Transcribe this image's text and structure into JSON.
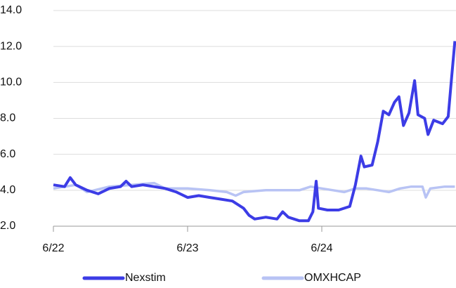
{
  "chart_data": {
    "type": "line",
    "xlim": [
      0,
      36
    ],
    "xticks": [
      {
        "value": 0,
        "label": "6/22"
      },
      {
        "value": 12,
        "label": "6/23"
      },
      {
        "value": 24,
        "label": "6/24"
      }
    ],
    "ylim": [
      2,
      14
    ],
    "yticks": [
      {
        "value": 2,
        "label": "2.0"
      },
      {
        "value": 4,
        "label": "4.0"
      },
      {
        "value": 6,
        "label": "6.0"
      },
      {
        "value": 8,
        "label": "8.0"
      },
      {
        "value": 10,
        "label": "10.0"
      },
      {
        "value": 12,
        "label": "12.0"
      },
      {
        "value": 14,
        "label": "14.0"
      }
    ],
    "grid": true,
    "legend": "bottom",
    "series": [
      {
        "name": "Nexstim",
        "color": "#3c3ce6",
        "x": [
          0,
          1,
          1.5,
          2,
          3,
          4,
          5,
          6,
          6.5,
          7,
          8,
          9,
          10,
          11,
          12,
          13,
          14,
          15,
          16,
          17,
          17.5,
          18,
          19,
          20,
          20.5,
          21,
          22,
          22.8,
          23.2,
          23.5,
          23.7,
          24.5,
          25.5,
          26.5,
          27,
          27.5,
          27.8,
          28.5,
          29,
          29.5,
          30,
          30.5,
          30.9,
          31.3,
          31.8,
          32.3,
          32.6,
          33.2,
          33.5,
          34,
          34.8,
          35.3,
          35.6,
          35.9
        ],
        "values": [
          4.3,
          4.2,
          4.7,
          4.3,
          4.0,
          3.8,
          4.1,
          4.2,
          4.5,
          4.2,
          4.3,
          4.2,
          4.1,
          3.9,
          3.6,
          3.7,
          3.6,
          3.5,
          3.4,
          3.0,
          2.6,
          2.4,
          2.5,
          2.4,
          2.8,
          2.5,
          2.3,
          2.3,
          2.8,
          4.5,
          3.0,
          2.9,
          2.9,
          3.1,
          4.3,
          5.9,
          5.3,
          5.4,
          6.7,
          8.4,
          8.2,
          8.9,
          9.2,
          7.6,
          8.3,
          10.1,
          8.2,
          8.0,
          7.1,
          7.9,
          7.7,
          8.1,
          10.2,
          12.3
        ]
      },
      {
        "name": "OMXHCAP",
        "color": "#b8c3f4",
        "x": [
          0,
          2,
          3,
          5,
          7,
          9,
          10,
          12,
          14,
          15.5,
          16.3,
          17,
          19,
          21,
          22,
          23,
          24,
          25,
          26,
          27,
          28,
          29,
          30,
          31,
          32,
          33,
          33.3,
          33.7,
          35,
          35.9
        ],
        "values": [
          4.1,
          4.3,
          3.9,
          4.2,
          4.3,
          4.4,
          4.1,
          4.1,
          4.0,
          3.9,
          3.7,
          3.9,
          4.0,
          4.0,
          4.0,
          4.2,
          4.1,
          4.0,
          3.9,
          4.1,
          4.1,
          4.0,
          3.9,
          4.1,
          4.2,
          4.2,
          3.6,
          4.1,
          4.2,
          4.2
        ]
      }
    ]
  }
}
